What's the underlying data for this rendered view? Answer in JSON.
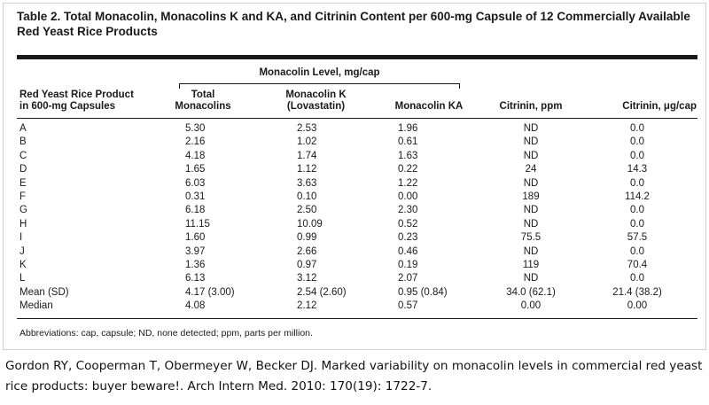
{
  "table": {
    "title": "Table 2. Total Monacolin, Monacolins K and KA, and Citrinin Content per 600-mg Capsule of 12 Commercially Available Red Yeast Rice Products",
    "group_header": "Monacolin Level, mg/cap",
    "headers": {
      "product": [
        "Red Yeast Rice Product",
        "in 600-mg Capsules"
      ],
      "total": [
        "Total",
        "Monacolins"
      ],
      "k": [
        "Monacolin K",
        "(Lovastatin)"
      ],
      "ka": "Monacolin KA",
      "citrinin_ppm": "Citrinin, ppm",
      "citrinin_ug": "Citrinin, μg/cap"
    },
    "rows": [
      [
        "A",
        "5.30",
        "2.53",
        "1.96",
        "ND",
        "0.0"
      ],
      [
        "B",
        "2.16",
        "1.02",
        "0.61",
        "ND",
        "0.0"
      ],
      [
        "C",
        "4.18",
        "1.74",
        "1.63",
        "ND",
        "0.0"
      ],
      [
        "D",
        "1.65",
        "1.12",
        "0.22",
        "24",
        "14.3"
      ],
      [
        "E",
        "6.03",
        "3.63",
        "1.22",
        "ND",
        "0.0"
      ],
      [
        "F",
        "0.31",
        "0.10",
        "0.00",
        "189",
        "114.2"
      ],
      [
        "G",
        "6.18",
        "2.50",
        "2.30",
        "ND",
        "0.0"
      ],
      [
        "H",
        "11.15",
        "10.09",
        "0.52",
        "ND",
        "0.0"
      ],
      [
        "I",
        "1.60",
        "0.99",
        "0.23",
        "75.5",
        "57.5"
      ],
      [
        "J",
        "3.97",
        "2.66",
        "0.46",
        "ND",
        "0.0"
      ],
      [
        "K",
        "1.36",
        "0.97",
        "0.19",
        "119",
        "70.4"
      ],
      [
        "L",
        "6.13",
        "3.12",
        "2.07",
        "ND",
        "0.0"
      ],
      [
        "Mean (SD)",
        "4.17 (3.00)",
        "2.54 (2.60)",
        "0.95 (0.84)",
        "34.0 (62.1)",
        "21.4 (38.2)"
      ],
      [
        "Median",
        "4.08",
        "2.12",
        "0.57",
        "0.00",
        "0.00"
      ]
    ],
    "footnote": "Abbreviations: cap, capsule; ND, none detected; ppm, parts per million."
  },
  "citation": "Gordon RY, Cooperman T, Obermeyer W, Becker DJ. Marked variability on monacolin levels in commercial red yeast rice products: buyer beware!. Arch Intern Med. 2010: 170(19): 1722-7."
}
